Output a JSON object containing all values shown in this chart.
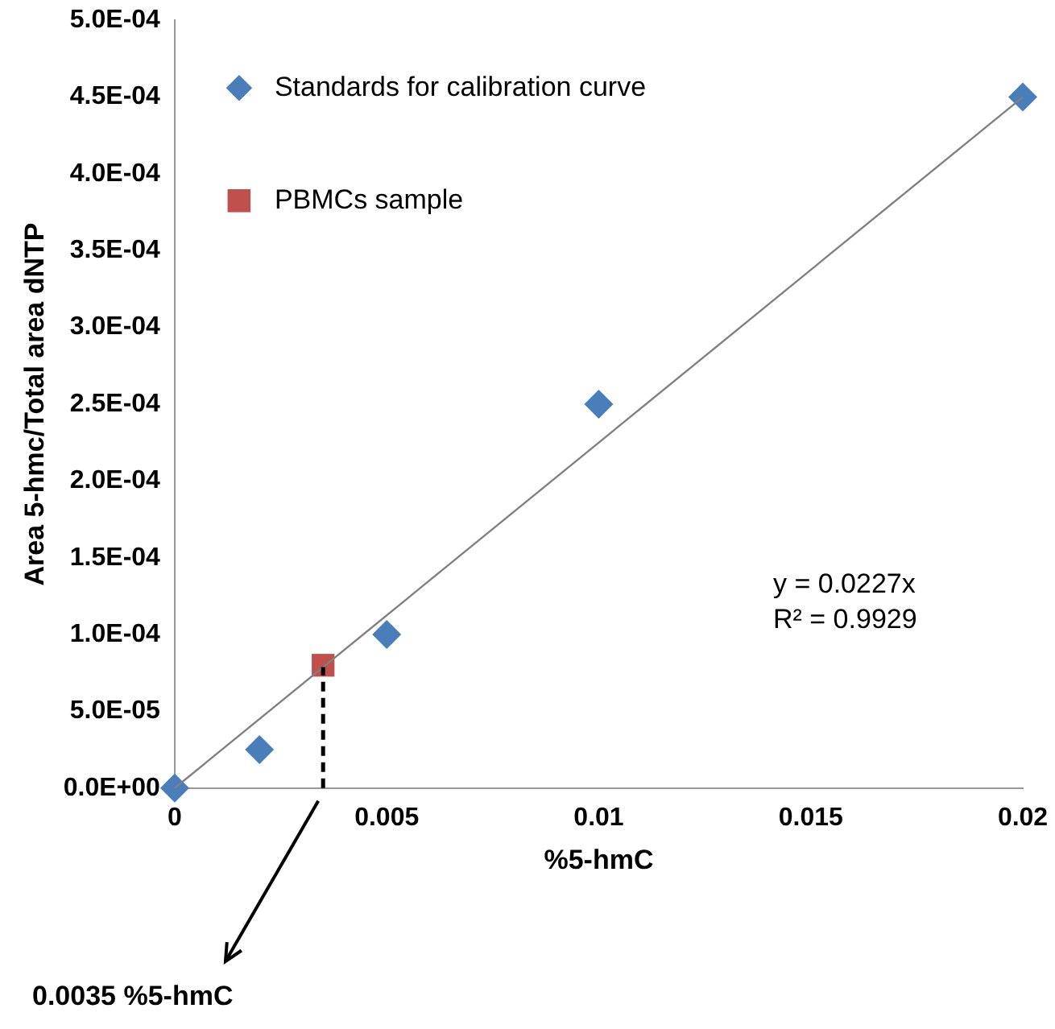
{
  "chart_data": {
    "type": "scatter",
    "xlabel": "%5-hmC",
    "ylabel": "Area 5-hmc/Total area dNTP",
    "xlim": [
      0,
      0.02
    ],
    "xticks": [
      0,
      0.005,
      0.01,
      0.015,
      0.02
    ],
    "ylim": [
      0,
      0.0005
    ],
    "yticks": [
      {
        "value": 0,
        "label": "0.0E+00"
      },
      {
        "value": 5e-05,
        "label": "5.0E-05"
      },
      {
        "value": 0.0001,
        "label": "1.0E-04"
      },
      {
        "value": 0.00015,
        "label": "1.5E-04"
      },
      {
        "value": 0.0002,
        "label": "2.0E-04"
      },
      {
        "value": 0.00025,
        "label": "2.5E-04"
      },
      {
        "value": 0.0003,
        "label": "3.0E-04"
      },
      {
        "value": 0.00035,
        "label": "3.5E-04"
      },
      {
        "value": 0.0004,
        "label": "4.0E-04"
      },
      {
        "value": 0.00045,
        "label": "4.5E-04"
      },
      {
        "value": 0.0005,
        "label": "5.0E-04"
      }
    ],
    "series": [
      {
        "type": "line",
        "color": "#808080",
        "marker": "none",
        "x": [
          0,
          0.02
        ],
        "values": [
          0,
          0.00045
        ]
      },
      {
        "name": "Standards for calibration curve",
        "type": "scatter",
        "marker": "diamond",
        "color": "#4a7ebb",
        "x": [
          0,
          0.002,
          0.005,
          0.01,
          0.02
        ],
        "values": [
          0,
          2.5e-05,
          0.0001,
          0.00025,
          0.00045
        ]
      },
      {
        "name": "PBMCs sample",
        "type": "scatter",
        "marker": "square",
        "color": "#c0504d",
        "x": [
          0.0035
        ],
        "values": [
          8e-05
        ]
      }
    ],
    "ref_lines": [
      {
        "axis": "x",
        "value": 0.0035,
        "color": "#000000",
        "line_style": "dashed"
      }
    ],
    "annotations": [
      "0.0035 %5-hmC",
      "y = 0.0227x",
      "R² = 0.9929"
    ],
    "legend": "top left",
    "grid": false
  }
}
